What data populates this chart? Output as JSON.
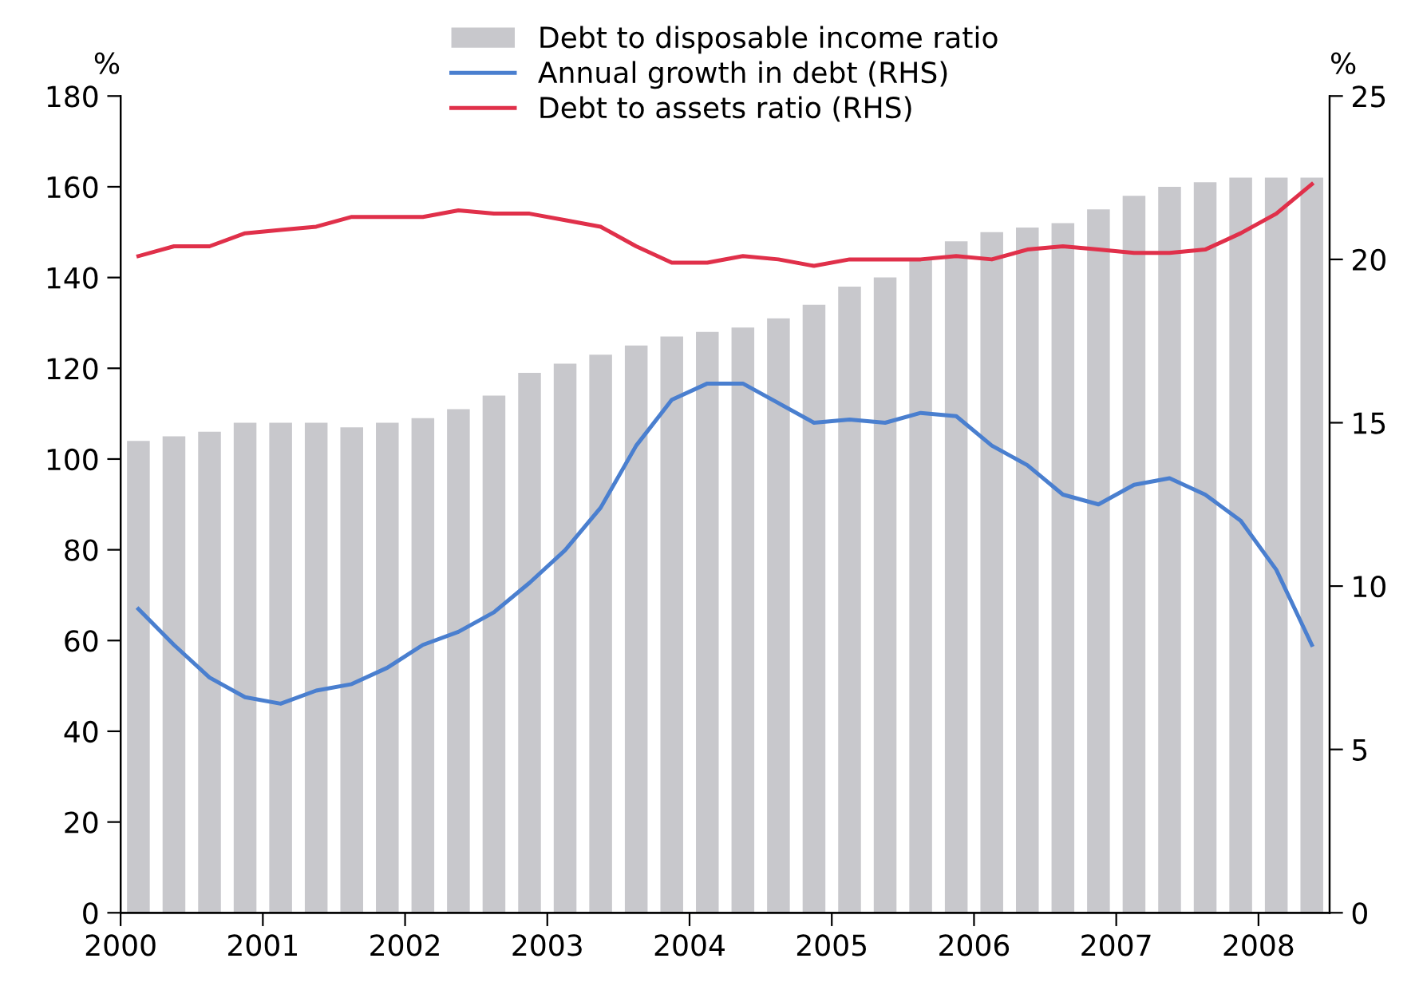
{
  "chart_data": {
    "type": "bar",
    "x": [
      2000.125,
      2000.375,
      2000.625,
      2000.875,
      2001.125,
      2001.375,
      2001.625,
      2001.875,
      2002.125,
      2002.375,
      2002.625,
      2002.875,
      2003.125,
      2003.375,
      2003.625,
      2003.875,
      2004.125,
      2004.375,
      2004.625,
      2004.875,
      2005.125,
      2005.375,
      2005.625,
      2005.875,
      2006.125,
      2006.375,
      2006.625,
      2006.875,
      2007.125,
      2007.375,
      2007.625,
      2007.875,
      2008.125,
      2008.375
    ],
    "series": [
      {
        "name": "Debt to disposable income ratio",
        "color": "#c8c8cc",
        "values": [
          104,
          105,
          106,
          108,
          108,
          108,
          107,
          108,
          109,
          111,
          114,
          119,
          121,
          123,
          125,
          127,
          128,
          129,
          131,
          134,
          138,
          140,
          144,
          148,
          150,
          151,
          152,
          155,
          158,
          160,
          161,
          162,
          162,
          162
        ]
      },
      {
        "name": "Annual growth in debt (RHS)",
        "type": "line",
        "axis": "y2",
        "color": "#4a7fcf",
        "values": [
          9.3,
          8.2,
          7.2,
          6.6,
          6.4,
          6.8,
          7.0,
          7.5,
          8.2,
          8.6,
          9.2,
          10.1,
          11.1,
          12.4,
          14.3,
          15.7,
          16.2,
          16.2,
          15.6,
          15.0,
          15.1,
          15.0,
          15.3,
          15.2,
          14.3,
          13.7,
          12.8,
          12.5,
          13.1,
          13.3,
          12.8,
          12.0,
          10.5,
          8.2
        ]
      },
      {
        "name": "Debt to assets ratio (RHS)",
        "type": "line",
        "axis": "y2",
        "color": "#e0304a",
        "values": [
          20.1,
          20.4,
          20.4,
          20.8,
          20.9,
          21.0,
          21.3,
          21.3,
          21.3,
          21.5,
          21.4,
          21.4,
          21.2,
          21.0,
          20.4,
          19.9,
          19.9,
          20.1,
          20.0,
          19.8,
          20.0,
          20.0,
          20.0,
          20.1,
          20.0,
          20.3,
          20.4,
          20.3,
          20.2,
          20.2,
          20.3,
          20.8,
          21.4,
          22.3
        ]
      }
    ],
    "ylabel": "%",
    "y2label": "%",
    "xlim": [
      2000,
      2008.5
    ],
    "xticks": [
      2000,
      2001,
      2002,
      2003,
      2004,
      2005,
      2006,
      2007,
      2008
    ],
    "ylim": [
      0,
      180
    ],
    "yticks": [
      0,
      20,
      40,
      60,
      80,
      100,
      120,
      140,
      160,
      180
    ],
    "y2lim": [
      0,
      25
    ],
    "y2ticks": [
      0,
      5,
      10,
      15,
      20,
      25
    ],
    "legend": "top",
    "grid": false
  }
}
